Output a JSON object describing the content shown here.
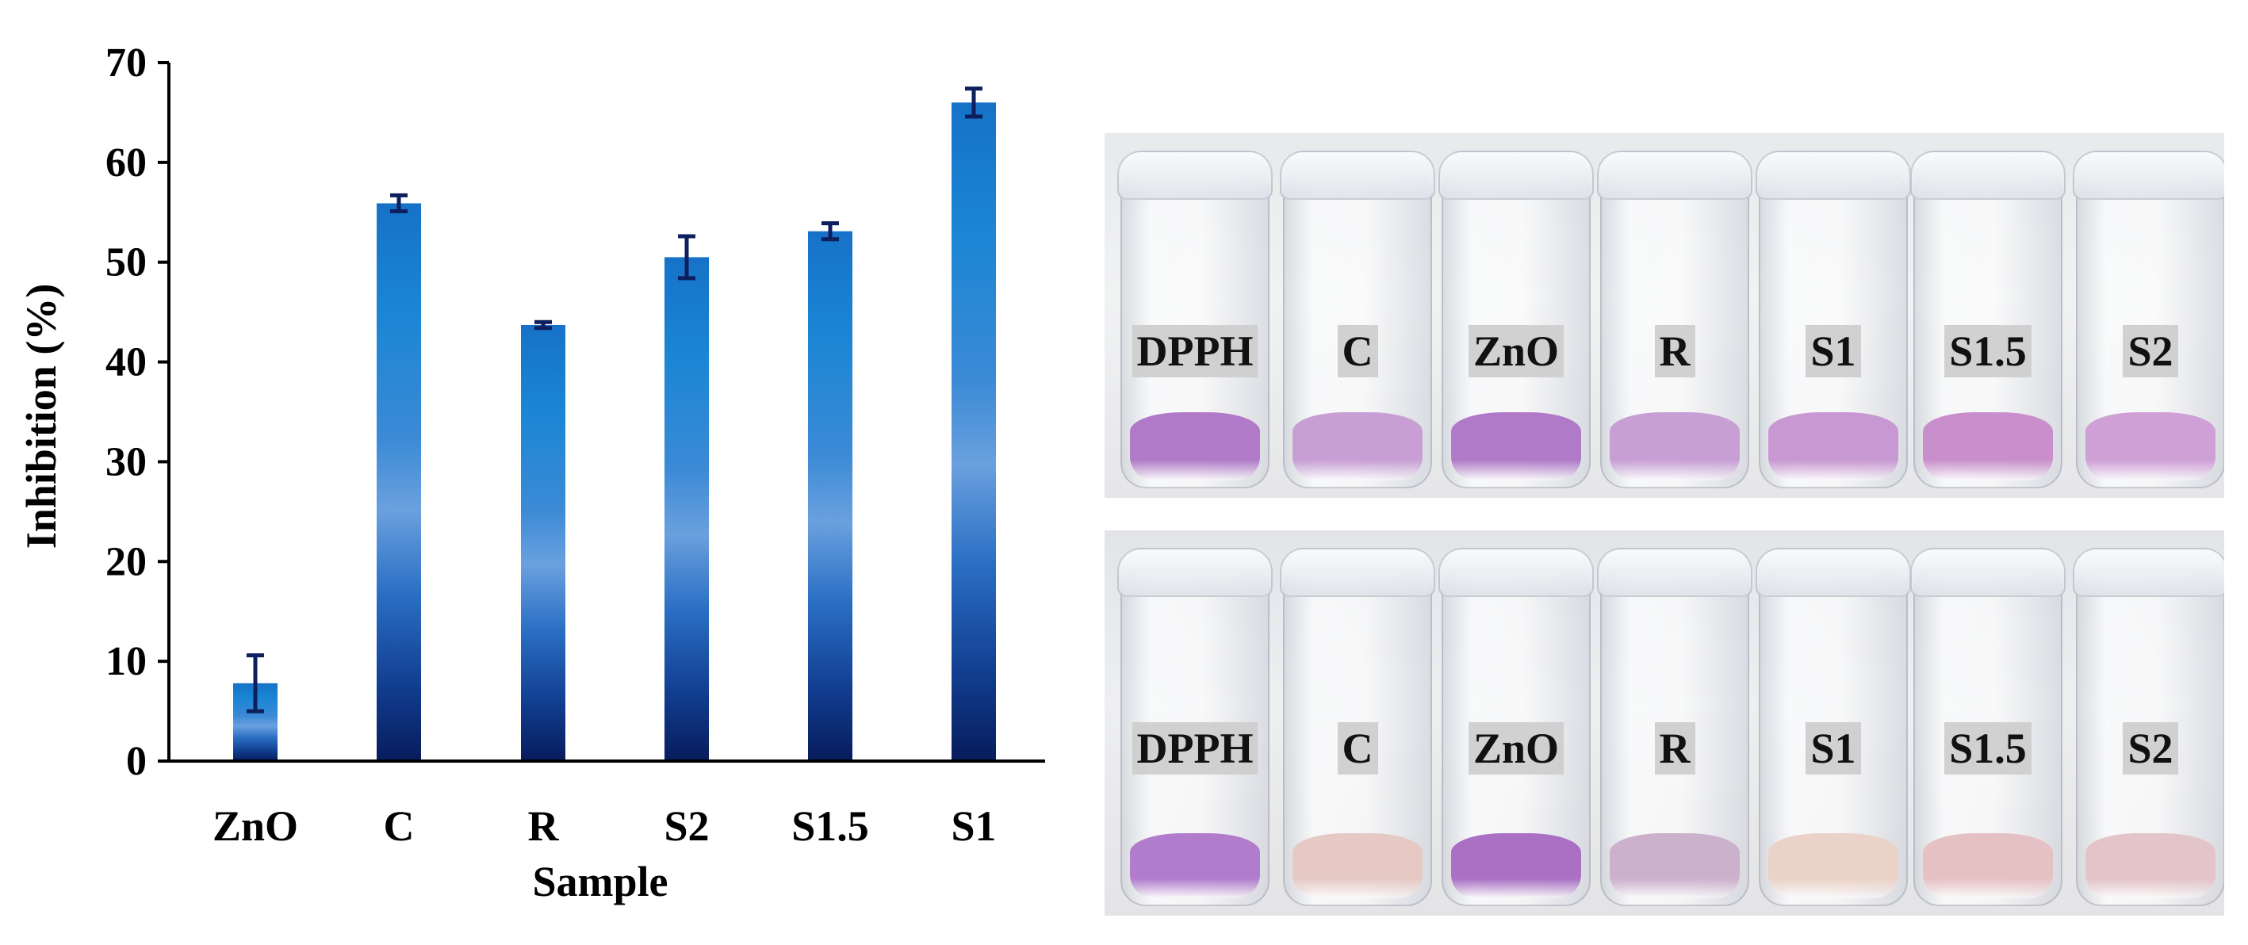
{
  "chart_data": {
    "type": "bar",
    "categories": [
      "ZnO",
      "C",
      "R",
      "S2",
      "S1.5",
      "S1"
    ],
    "values": [
      7.8,
      55.9,
      43.7,
      50.5,
      53.1,
      66.0
    ],
    "errors": [
      2.8,
      0.8,
      0.3,
      2.1,
      0.8,
      1.4
    ],
    "xlabel": "Sample",
    "ylabel": "Inhibition (%)",
    "ylim": [
      0,
      70
    ],
    "yticks": [
      "0",
      "10",
      "20",
      "30",
      "40",
      "50",
      "60",
      "70"
    ],
    "grid": false,
    "bar_color": "#1a6fc4"
  },
  "photos": {
    "top": {
      "labels": [
        "DPPH",
        "C",
        "ZnO",
        "R",
        "S1",
        "S1.5",
        "S2"
      ],
      "liquid_colors": [
        "#b07ac8",
        "#c79fd4",
        "#b07ac8",
        "#c79fd4",
        "#c898d2",
        "#c98fcc",
        "#cfa0d6"
      ]
    },
    "bottom": {
      "labels": [
        "DPPH",
        "C",
        "ZnO",
        "R",
        "S1",
        "S1.5",
        "S2"
      ],
      "liquid_colors": [
        "#b27ccc",
        "#e6c9c5",
        "#a970c4",
        "#ccb1cc",
        "#ebd2c9",
        "#e6c1c4",
        "#e3c4c8"
      ]
    }
  }
}
